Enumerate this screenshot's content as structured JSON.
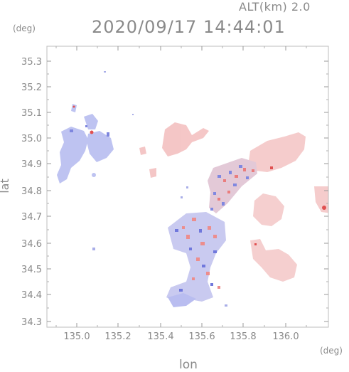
{
  "header": {
    "alt_label": "ALT(km)  2.0",
    "datetime": "2020/09/17 14:44:01"
  },
  "axes": {
    "y_unit": "(deg)",
    "x_unit": "(deg)",
    "y_label": "lat",
    "x_label": "lon",
    "x_ticks": [
      "135.0",
      "135.2",
      "135.4",
      "135.6",
      "135.8",
      "136.0"
    ],
    "y_ticks": [
      "35.3",
      "35.2",
      "35.1",
      "35.0",
      "34.9",
      "34.8",
      "34.7",
      "34.6",
      "34.5",
      "34.4",
      "34.3"
    ]
  },
  "colors": {
    "approaching": "#8c96e6",
    "receding": "#ec9a9a",
    "frame": "#bdbdbd",
    "text": "#8a8a8a"
  }
}
